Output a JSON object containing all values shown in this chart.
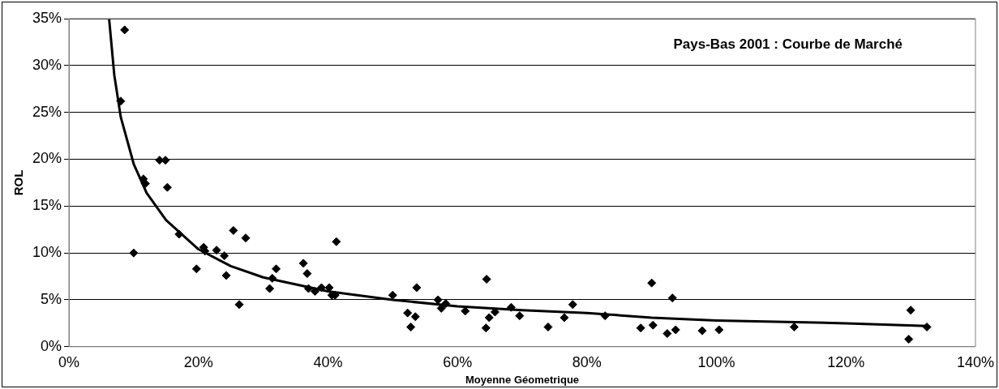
{
  "chart_data": {
    "type": "scatter",
    "title": "Pays-Bas 2001 : Courbe de Marché",
    "xlabel": "Moyenne Géometrique",
    "ylabel": "ROL",
    "xlim": [
      0,
      140
    ],
    "xticks": [
      {
        "value": 0,
        "label": "0%"
      },
      {
        "value": 20,
        "label": "20%"
      },
      {
        "value": 40,
        "label": "40%"
      },
      {
        "value": 60,
        "label": "60%"
      },
      {
        "value": 80,
        "label": "80%"
      },
      {
        "value": 100,
        "label": "100%"
      },
      {
        "value": 120,
        "label": "120%"
      },
      {
        "value": 140,
        "label": "140%"
      }
    ],
    "ylim": [
      0,
      35
    ],
    "yticks": [
      {
        "value": 0,
        "label": "0%"
      },
      {
        "value": 5,
        "label": "5%"
      },
      {
        "value": 10,
        "label": "10%"
      },
      {
        "value": 15,
        "label": "15%"
      },
      {
        "value": 20,
        "label": "20%"
      },
      {
        "value": 25,
        "label": "25%"
      },
      {
        "value": 30,
        "label": "30%"
      },
      {
        "value": 35,
        "label": "35%"
      }
    ],
    "grid": "y",
    "legend": false,
    "series": [
      {
        "color": "#000000",
        "marker": "diamond",
        "x": [
          8,
          8.6,
          10,
          11.5,
          11.8,
          14,
          14.9,
          15.2,
          17,
          19.7,
          20.8,
          21,
          22.8,
          24,
          24.3,
          25.4,
          26.3,
          27.3,
          31,
          31.4,
          32,
          36.2,
          36.8,
          37,
          38,
          39,
          40.2,
          40.6,
          41.1,
          41.3,
          50,
          52.3,
          52.8,
          53.5,
          53.7,
          57,
          57.5,
          58.2,
          61.2,
          64.4,
          64.5,
          64.9,
          65.8,
          68.3,
          69.6,
          74,
          76.5,
          77.8,
          82.8,
          88.3,
          90,
          90.2,
          92.4,
          93.2,
          93.7,
          97.8,
          100.4,
          112,
          129.7,
          130,
          132.5
        ],
        "values": [
          26.2,
          33.8,
          10,
          17.9,
          17.4,
          19.9,
          19.9,
          17,
          12,
          8.3,
          10.6,
          10.2,
          10.3,
          9.7,
          7.6,
          12.4,
          4.5,
          11.6,
          6.2,
          7.3,
          8.3,
          8.9,
          7.8,
          6.2,
          5.9,
          6.3,
          6.3,
          5.5,
          5.5,
          11.2,
          5.5,
          3.6,
          2.1,
          3.2,
          6.3,
          5,
          4.1,
          4.6,
          3.8,
          2,
          7.2,
          3.1,
          3.7,
          4.2,
          3.3,
          2.1,
          3.1,
          4.5,
          3.3,
          2,
          6.8,
          2.3,
          1.4,
          5.2,
          1.8,
          1.7,
          1.8,
          2.1,
          0.8,
          3.9,
          2.1
        ]
      },
      {
        "type": "line",
        "color": "#000000",
        "marker": "none",
        "x": [
          6.2,
          7,
          8,
          10,
          12,
          15,
          20,
          25,
          30,
          40,
          50,
          60,
          70,
          80,
          90,
          100,
          120,
          132.5
        ],
        "values": [
          35,
          29,
          24.5,
          19.5,
          16.4,
          13.5,
          10.4,
          8.6,
          7.4,
          5.9,
          5,
          4.3,
          3.9,
          3.6,
          3.1,
          2.8,
          2.5,
          2.2
        ]
      }
    ]
  }
}
